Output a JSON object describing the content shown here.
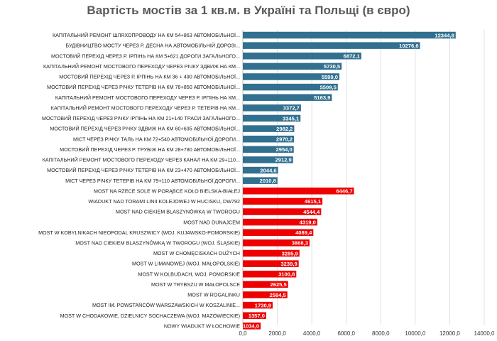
{
  "chart_data": {
    "type": "bar",
    "orientation": "horizontal",
    "title": "Вартість мостів за 1 кв.м. в Україні та Польщі (в євро)",
    "xlabel": "",
    "ylabel": "",
    "xlim": [
      0,
      14000
    ],
    "x_ticks": [
      "0,0",
      "2000,0",
      "4000,0",
      "6000,0",
      "8000,0",
      "10000,0",
      "12000,0",
      "14000,0"
    ],
    "grid": true,
    "legend": "none",
    "colors": {
      "ukraine": "#31708f",
      "poland": "#ee0000"
    },
    "bars": [
      {
        "label": "КАПІТАЛЬНИЙ РЕМОНТ ШЛЯХОПРОВОДУ НА КМ 54+863 АВТОМОБІЛЬНОЇ...",
        "value": 12344.8,
        "value_label": "12344,8",
        "group": "ukraine"
      },
      {
        "label": "БУДІВНИЦТВО МОСТУ ЧЕРЕЗ Р. ДЕСНА НА АВТОМОБІЛЬНІЙ ДОРОЗІ...",
        "value": 10276.6,
        "value_label": "10276,6",
        "group": "ukraine"
      },
      {
        "label": "МОСТОВИЙ ПЕРЕХІД ЧЕРЕЗ Р. ІРПІНЬ НА КМ 5+621 ДОРОГИ ЗАГАЛЬНОГО...",
        "value": 6872.1,
        "value_label": "6872,1",
        "group": "ukraine"
      },
      {
        "label": "КАПІТАЛЬНИЙ РЕМОНТ МОСТОВОГО ПЕРЕХОДУ ЧЕРЕЗ РІЧКУ ЗДВИЖ НА КМ...",
        "value": 5730.5,
        "value_label": "5730,5",
        "group": "ukraine"
      },
      {
        "label": "МОСТОВИЙ ПЕРЕХІД ЧЕРЕЗ Р. ІРПІНЬ НА КМ 36 + 490 АВТОМОБІЛЬНОЇ...",
        "value": 5599.0,
        "value_label": "5599,0",
        "group": "ukraine"
      },
      {
        "label": "МОСТОВИЙ ПЕРЕХІД ЧЕРЕЗ РІЧКУ ТЕТЕРІВ НА КМ 78+850 АВТОМОБІЛЬНОЇ...",
        "value": 5509.5,
        "value_label": "5509,5",
        "group": "ukraine"
      },
      {
        "label": "КАПІТАЛЬНИЙ РЕМОНТ МОСТОВОГО ПЕРЕХОДУ ЧЕРЕЗ Р. ІРПІНЬ НА КМ...",
        "value": 5163.9,
        "value_label": "5163,9",
        "group": "ukraine"
      },
      {
        "label": "КАПІТАЛЬНИЙ РЕМОНТ МОСТОВОГО ПЕРЕХОДУ ЧЕРЕЗ Р. ТЕТЕРІВ НА КМ...",
        "value": 3372.7,
        "value_label": "3372,7",
        "group": "ukraine"
      },
      {
        "label": "МОСТОВИЙ ПЕРЕХІД ЧЕРЕЗ РІЧКУ ІРПІНЬ НА КМ 21+140 ТРАСИ ЗАГАЛЬНОГО...",
        "value": 3345.1,
        "value_label": "3345,1",
        "group": "ukraine"
      },
      {
        "label": "МОСТОВИЙ ПЕРЕХІД ЧЕРЕЗ РІЧКУ ЗДВИЖ НА КМ 60+635 АВТОМОБІЛЬНОЇ...",
        "value": 2982.2,
        "value_label": "2982,2",
        "group": "ukraine"
      },
      {
        "label": "МІСТ ЧЕРЕЗ РІЧКУ ТАЛЬ НА КМ 72+540 АВТОМОБІЛЬНОЇ ДОРОГИ...",
        "value": 2970.2,
        "value_label": "2970,2",
        "group": "ukraine"
      },
      {
        "label": "МОСТОВИЙ ПЕРЕХІД ЧЕРЕЗ Р. ТРУБІЖ НА КМ 28+780 АВТОМОБІЛЬНОЇ...",
        "value": 2954.0,
        "value_label": "2954,0",
        "group": "ukraine"
      },
      {
        "label": "КАПІТАЛЬНИЙ РЕМОНТ МОСТОВОГО ПЕРЕХОДУ ЧЕРЕЗ КАНАЛ НА КМ 29+110...",
        "value": 2912.9,
        "value_label": "2912,9",
        "group": "ukraine"
      },
      {
        "label": "МОСТОВИЙ ПЕРЕХІД ЧЕРЕЗ РІЧКУ ТЕТЕРІВ НА КМ 23+470 АВТОМОБІЛЬНОЇ...",
        "value": 2044.6,
        "value_label": "2044,6",
        "group": "ukraine"
      },
      {
        "label": "МІСТ ЧЕРЕЗ РІЧКУ ТЕТЕРІВ НА КМ 79+110 АВТОМОБІЛЬНОЇ ДОРОГИ...",
        "value": 2010.8,
        "value_label": "2010,8",
        "group": "ukraine"
      },
      {
        "label": "MOST NA RZECE SOLE W PORĄBCE KOŁO BIELSKA-BIAŁEJ",
        "value": 6446.7,
        "value_label": "6446,7",
        "group": "poland"
      },
      {
        "label": "WIADUKT NAD TORAMI LINII KOLEJOWEJ  W HUCISKU, DW792",
        "value": 4615.1,
        "value_label": "4615,1",
        "group": "poland"
      },
      {
        "label": "MOST NAD CIEKIEM BLASZYNÓWKĄ W TWOROGU",
        "value": 4544.4,
        "value_label": "4544,4",
        "group": "poland"
      },
      {
        "label": "MOST NAD DUNAJCEM",
        "value": 4319.0,
        "value_label": "4319,0",
        "group": "poland"
      },
      {
        "label": "MOST W KOBYLNIKACH NIEOPODAL KRUSZWICY (WOJ. KUJAWSKO-POMORSKIE)",
        "value": 4089.4,
        "value_label": "4089,4",
        "group": "poland"
      },
      {
        "label": "MOST NAD CIEKIEM BLASZYNÓWKĄ W TWOROGU (WOJ. ŚLĄSKIE)",
        "value": 3868.3,
        "value_label": "3868,3",
        "group": "poland"
      },
      {
        "label": "MOST W CHOMĘCISKACH DUŻYCH",
        "value": 3285.9,
        "value_label": "3285,9",
        "group": "poland"
      },
      {
        "label": "MOST W LIMANOWEJ (WOJ. MAŁOPOLSKIE)",
        "value": 3239.9,
        "value_label": "3239,9",
        "group": "poland"
      },
      {
        "label": "MOST W KOLBUDACH, WOJ. POMORSKIE",
        "value": 3100.8,
        "value_label": "3100,8",
        "group": "poland"
      },
      {
        "label": "MOST W TRYBSZU  W MAŁOPOLSCE",
        "value": 2625.5,
        "value_label": "2625,5",
        "group": "poland"
      },
      {
        "label": "MOST W ROGALINKU",
        "value": 2584.5,
        "value_label": "2584,5",
        "group": "poland"
      },
      {
        "label": "MOST IM. POWSTAŃCÓW WARSZAWSKICH W KOSZALINIE...",
        "value": 1730.9,
        "value_label": "1730,9",
        "group": "poland"
      },
      {
        "label": "MOST W CHODAKOWIE, DZIELNICY SOCHACZEWA (WOJ. MAZOWIECKIE)",
        "value": 1357.0,
        "value_label": "1357,0",
        "group": "poland"
      },
      {
        "label": "NOWY WIADUKT W ŁOCHOWIE",
        "value": 1034.0,
        "value_label": "1034,0",
        "group": "poland"
      }
    ]
  }
}
